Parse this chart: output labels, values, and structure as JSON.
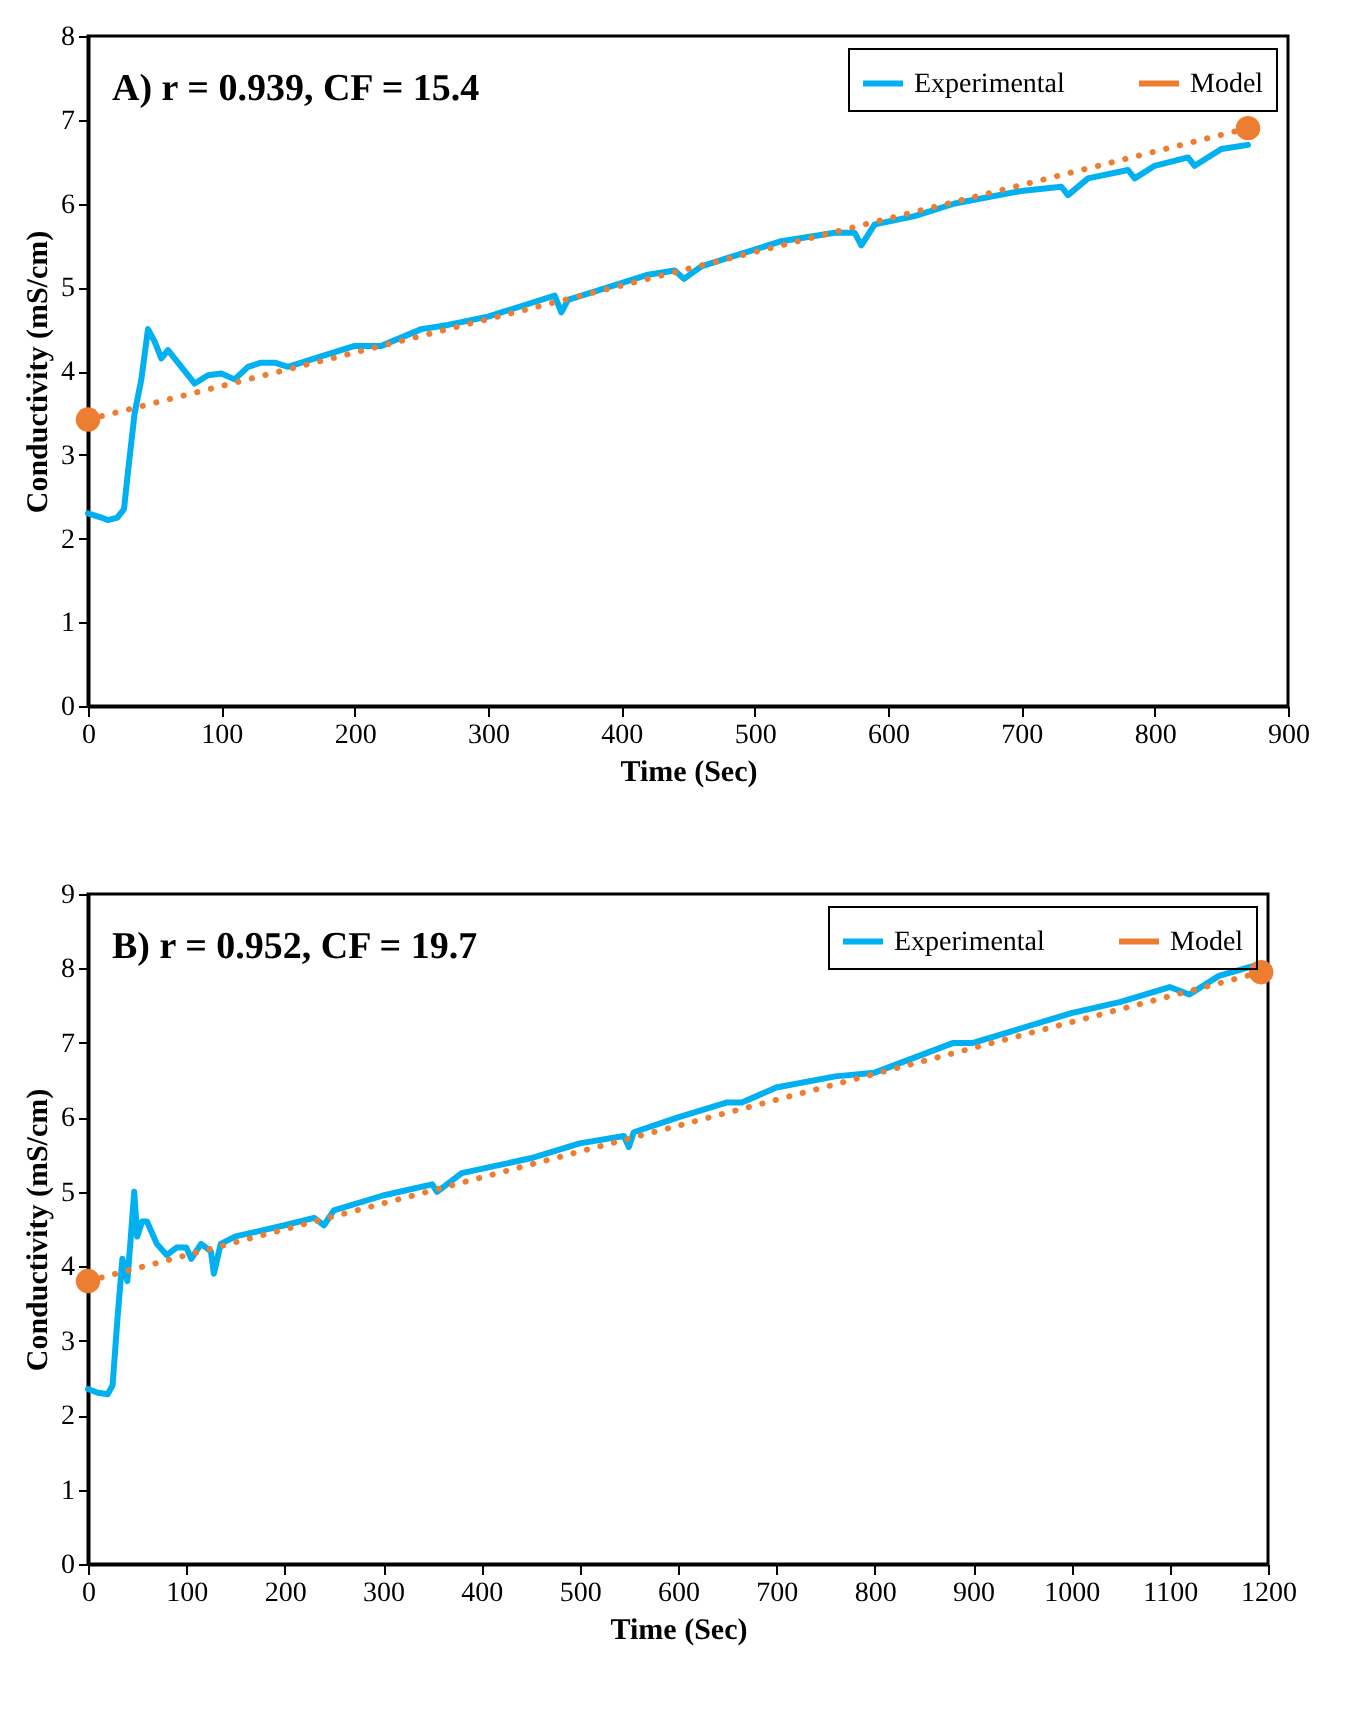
{
  "chart_data": [
    {
      "type": "line",
      "annotations": [
        "A) r = 0.939, CF = 15.4"
      ],
      "xlabel": "Time (Sec)",
      "ylabel": "Conductivity (mS/cm)",
      "xlim": [
        0,
        900
      ],
      "xticks": [
        0,
        100,
        200,
        300,
        400,
        500,
        600,
        700,
        800,
        900
      ],
      "ylim": [
        0,
        8
      ],
      "yticks": [
        0,
        1,
        2,
        3,
        4,
        5,
        6,
        7,
        8
      ],
      "legend": "top right",
      "series": [
        {
          "name": "Experimental",
          "color": "#00b0f0",
          "line_style": "solid",
          "marker": "none",
          "x": [
            0,
            10,
            15,
            22,
            27,
            30,
            35,
            40,
            45,
            50,
            55,
            60,
            70,
            80,
            90,
            100,
            110,
            120,
            130,
            140,
            150,
            170,
            200,
            220,
            250,
            270,
            300,
            330,
            350,
            355,
            360,
            400,
            420,
            440,
            447,
            460,
            480,
            500,
            520,
            560,
            575,
            580,
            590,
            620,
            650,
            700,
            730,
            735,
            750,
            780,
            785,
            800,
            825,
            830,
            850,
            870
          ],
          "values": [
            2.3,
            2.25,
            2.22,
            2.25,
            2.35,
            2.8,
            3.5,
            3.9,
            4.5,
            4.35,
            4.15,
            4.25,
            4.05,
            3.85,
            3.95,
            3.97,
            3.9,
            4.05,
            4.1,
            4.1,
            4.05,
            4.15,
            4.3,
            4.3,
            4.5,
            4.55,
            4.65,
            4.8,
            4.9,
            4.7,
            4.85,
            5.05,
            5.15,
            5.2,
            5.1,
            5.25,
            5.35,
            5.45,
            5.55,
            5.65,
            5.65,
            5.5,
            5.75,
            5.85,
            6.0,
            6.15,
            6.2,
            6.1,
            6.3,
            6.4,
            6.3,
            6.45,
            6.55,
            6.45,
            6.65,
            6.7
          ]
        },
        {
          "name": "Model",
          "color": "#ed7d31",
          "line_style": "dotted",
          "marker": "circle",
          "x": [
            0,
            870
          ],
          "values": [
            3.42,
            6.9
          ]
        }
      ]
    },
    {
      "type": "line",
      "annotations": [
        "B) r = 0.952, CF = 19.7"
      ],
      "xlabel": "Time (Sec)",
      "ylabel": "Conductivity (mS/cm)",
      "xlim": [
        0,
        1200
      ],
      "xticks": [
        0,
        100,
        200,
        300,
        400,
        500,
        600,
        700,
        800,
        900,
        1000,
        1100,
        1200
      ],
      "ylim": [
        0,
        9
      ],
      "yticks": [
        0,
        1,
        2,
        3,
        4,
        5,
        6,
        7,
        8,
        9
      ],
      "legend": "top right",
      "series": [
        {
          "name": "Experimental",
          "color": "#00b0f0",
          "line_style": "solid",
          "marker": "none",
          "x": [
            0,
            10,
            20,
            25,
            30,
            35,
            40,
            43,
            47,
            50,
            55,
            60,
            70,
            80,
            90,
            100,
            105,
            115,
            125,
            128,
            135,
            150,
            200,
            230,
            240,
            250,
            300,
            350,
            355,
            380,
            450,
            500,
            545,
            550,
            555,
            600,
            650,
            665,
            700,
            760,
            800,
            880,
            900,
            950,
            1000,
            1050,
            1100,
            1120,
            1150,
            1190
          ],
          "values": [
            2.35,
            2.3,
            2.28,
            2.4,
            3.3,
            4.1,
            3.8,
            4.3,
            5.0,
            4.4,
            4.6,
            4.6,
            4.3,
            4.15,
            4.25,
            4.25,
            4.1,
            4.3,
            4.2,
            3.9,
            4.3,
            4.4,
            4.55,
            4.65,
            4.55,
            4.75,
            4.95,
            5.1,
            5.0,
            5.25,
            5.45,
            5.65,
            5.75,
            5.6,
            5.8,
            6.0,
            6.2,
            6.2,
            6.4,
            6.55,
            6.6,
            7.0,
            7.0,
            7.2,
            7.4,
            7.55,
            7.75,
            7.65,
            7.9,
            8.05
          ]
        },
        {
          "name": "Model",
          "color": "#ed7d31",
          "line_style": "dotted",
          "marker": "circle",
          "x": [
            0,
            1193
          ],
          "values": [
            3.8,
            7.95
          ]
        }
      ]
    }
  ]
}
